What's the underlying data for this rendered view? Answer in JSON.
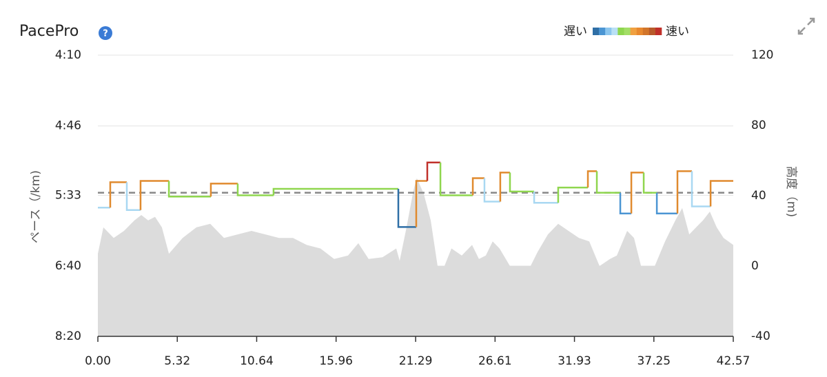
{
  "chart_data": {
    "type": "line",
    "title": "PacePro",
    "help": "?",
    "legend": {
      "low": "遅い",
      "high": "速い",
      "colors": [
        "#2f6fa6",
        "#4b95d3",
        "#8cc6ee",
        "#b9e0f5",
        "#8ed64f",
        "#a3de66",
        "#f0a040",
        "#e8892f",
        "#d2752a",
        "#b85a2a",
        "#c0302a"
      ]
    },
    "y_label": "ペース（/km)",
    "y2_label": "高度（m)",
    "xlim": [
      0,
      42.57
    ],
    "xticks": [
      {
        "value": 0,
        "label": "0.00"
      },
      5.32,
      10.64,
      15.96,
      21.29,
      26.61,
      31.93,
      37.25,
      42.57
    ],
    "ylim": [
      500,
      250
    ],
    "yscale": "inverse",
    "yticks": [
      {
        "value": 250,
        "label": "4:10"
      },
      {
        "value": 286,
        "label": "4:46"
      },
      {
        "value": 333,
        "label": "5:33"
      },
      {
        "value": 400,
        "label": "6:40"
      },
      {
        "value": 500,
        "label": "8:20"
      }
    ],
    "y2lim": [
      -40,
      120
    ],
    "y2ticks": [
      120,
      80,
      40,
      0,
      -40
    ],
    "grid": true,
    "average": 331,
    "average_color": "#888888",
    "pace": {
      "x": [
        0,
        0.83,
        1.94,
        2.86,
        4.76,
        7.57,
        9.37,
        11.77,
        20.13,
        21.33,
        22.07,
        22.95,
        25.12,
        25.9,
        26.96,
        27.61,
        29.23,
        30.84,
        32.83,
        33.43,
        35.0,
        35.74,
        36.57,
        37.45,
        38.83,
        39.8,
        41.05
      ],
      "values": [
        343,
        323,
        345,
        322,
        334,
        324,
        333,
        328,
        360,
        322,
        309,
        333,
        320,
        338,
        316,
        330,
        339,
        327,
        315,
        331,
        348,
        316,
        331,
        348,
        315,
        342,
        322
      ],
      "colors": [
        "#a9d8f2",
        "#e08a2e",
        "#a9d8f2",
        "#e08a2e",
        "#8fd64e",
        "#e08a2e",
        "#8fd64e",
        "#8fd64e",
        "#2f6fa6",
        "#e08a2e",
        "#c0302a",
        "#8fd64e",
        "#e08a2e",
        "#a9d8f2",
        "#e08a2e",
        "#8fd64e",
        "#a9d8f2",
        "#8fd64e",
        "#e08a2e",
        "#8fd64e",
        "#4b95d3",
        "#e08a2e",
        "#8fd64e",
        "#4b95d3",
        "#e08a2e",
        "#a9d8f2",
        "#e08a2e"
      ]
    },
    "elevation": {
      "axis": "y2",
      "color": "#dcdcdc",
      "x": [
        0,
        0.37,
        1.06,
        1.75,
        2.45,
        2.91,
        3.37,
        3.83,
        4.29,
        4.76,
        5.68,
        6.6,
        7.53,
        8.45,
        9.37,
        10.29,
        11.22,
        12.14,
        13.07,
        13.99,
        14.91,
        15.83,
        16.76,
        17.45,
        18.14,
        19.07,
        19.99,
        20.22,
        20.68,
        21.14,
        21.37,
        21.84,
        22.3,
        22.76,
        23.22,
        23.69,
        24.38,
        25.07,
        25.53,
        25.99,
        26.45,
        26.91,
        27.61,
        28.99,
        29.46,
        30.15,
        30.84,
        31.53,
        32.23,
        32.92,
        33.61,
        34.31,
        34.77,
        35.46,
        35.92,
        36.39,
        37.31,
        38.0,
        38.69,
        39.15,
        39.62,
        40.08,
        40.54,
        41.0,
        41.46,
        41.92,
        42.57
      ],
      "values": [
        7,
        22,
        16,
        20,
        26,
        29,
        26,
        28,
        22,
        7,
        16,
        22,
        24,
        16,
        18,
        20,
        18,
        16,
        16,
        12,
        10,
        4,
        6,
        13,
        4,
        5,
        10,
        3,
        22,
        43,
        50,
        41,
        26,
        0,
        0,
        10,
        6,
        12,
        4,
        6,
        14,
        10,
        0,
        0,
        8,
        18,
        24,
        20,
        16,
        14,
        0,
        4,
        6,
        20,
        16,
        0,
        0,
        14,
        26,
        33,
        18,
        22,
        26,
        31,
        22,
        16,
        12
      ]
    }
  }
}
